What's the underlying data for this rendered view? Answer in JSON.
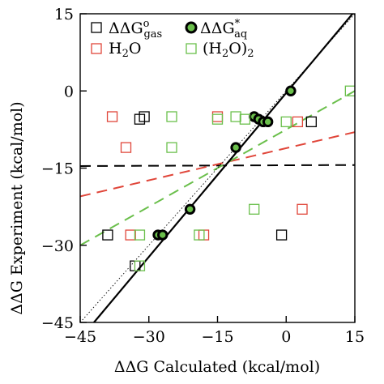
{
  "chart_data": {
    "type": "scatter",
    "xlabel": "ΔΔG Calculated (kcal/mol)",
    "ylabel": "ΔΔG Experiment (kcal/mol)",
    "xlim": [
      -45,
      15
    ],
    "ylim": [
      -45,
      15
    ],
    "xticks": [
      "−45",
      "−30",
      "−15",
      "0",
      "15"
    ],
    "yticks": [
      "15",
      "0",
      "−15",
      "−30",
      "−45"
    ],
    "xtick_values": [
      -45,
      -30,
      -15,
      0,
      15
    ],
    "ytick_values": [
      15,
      0,
      -15,
      -30,
      -45
    ],
    "grid": false,
    "legend_position": "top",
    "series": [
      {
        "key": "gas",
        "marker": "open-square",
        "color": "#000000",
        "points": [
          [
            -39,
            -28
          ],
          [
            -32,
            -5.5
          ],
          [
            -31,
            -5
          ],
          [
            -33,
            -34
          ],
          [
            -1,
            -28
          ],
          [
            5.5,
            -6
          ]
        ]
      },
      {
        "key": "h2o",
        "marker": "open-square",
        "color": "#e0463a",
        "points": [
          [
            -38,
            -5
          ],
          [
            -35,
            -11
          ],
          [
            -34,
            -28
          ],
          [
            -15,
            -5
          ],
          [
            -18,
            -28
          ],
          [
            2.5,
            -6
          ],
          [
            3.5,
            -23
          ]
        ]
      },
      {
        "key": "aq",
        "marker": "filled-circle",
        "color": "#000000",
        "fill": "#6abf4b",
        "points": [
          [
            -28,
            -28
          ],
          [
            -27,
            -28
          ],
          [
            -21,
            -23
          ],
          [
            -11,
            -11
          ],
          [
            -7,
            -5
          ],
          [
            -6,
            -5.5
          ],
          [
            -5,
            -6
          ],
          [
            -4,
            -6
          ],
          [
            1,
            0
          ]
        ]
      },
      {
        "key": "h2o2",
        "marker": "open-square",
        "color": "#6abf4b",
        "points": [
          [
            -32,
            -28
          ],
          [
            -32,
            -34
          ],
          [
            -25,
            -5
          ],
          [
            -25,
            -11
          ],
          [
            -15,
            -5.5
          ],
          [
            -11,
            -5
          ],
          [
            -9,
            -5.5
          ],
          [
            -19,
            -28
          ],
          [
            -7,
            -23
          ],
          [
            0,
            -6
          ],
          [
            14,
            0
          ]
        ]
      }
    ],
    "lines": [
      {
        "key": "fit-gas",
        "color": "#000000",
        "style": "dashed",
        "points": [
          [
            -45,
            -14.6
          ],
          [
            15,
            -14.4
          ]
        ]
      },
      {
        "key": "fit-h2o",
        "color": "#e0463a",
        "style": "dashed",
        "points": [
          [
            -45,
            -20.5
          ],
          [
            15,
            -8
          ]
        ]
      },
      {
        "key": "fit-h2o2",
        "color": "#6abf4b",
        "style": "dashed",
        "points": [
          [
            -45,
            -30
          ],
          [
            15,
            0
          ]
        ]
      },
      {
        "key": "fit-aq",
        "color": "#000000",
        "style": "solid",
        "points": [
          [
            -42,
            -45
          ],
          [
            14.5,
            15
          ]
        ]
      },
      {
        "key": "identity",
        "color": "#000000",
        "style": "dotted",
        "points": [
          [
            -45,
            -45
          ],
          [
            15,
            15
          ]
        ]
      }
    ]
  },
  "legend": {
    "gas": {
      "prefix": "ΔΔG",
      "sup": "o",
      "sub": "gas"
    },
    "aq": {
      "prefix": "ΔΔG",
      "sup": "*",
      "sub": "aq"
    },
    "h2o": {
      "a": "H",
      "sub": "2",
      "b": "O"
    },
    "h2o2": {
      "a": "(H",
      "sub1": "2",
      "b": "O)",
      "sub2": "2"
    }
  }
}
